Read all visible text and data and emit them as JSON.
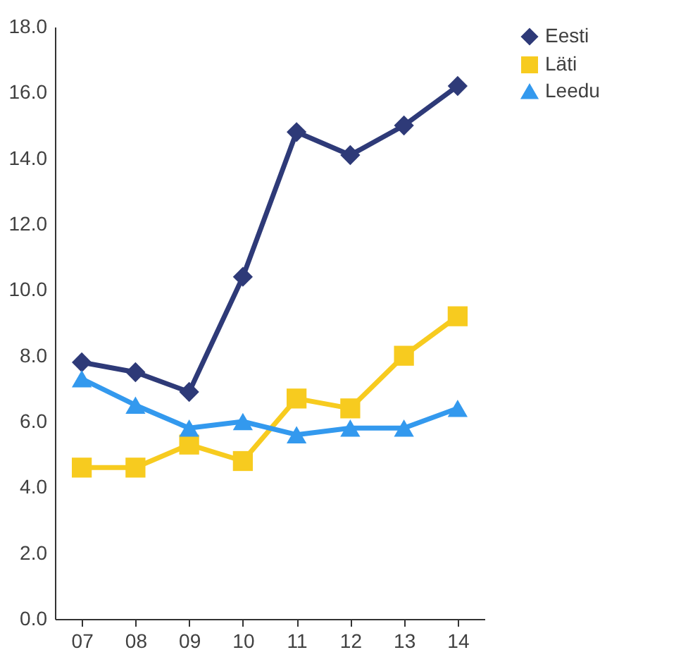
{
  "chart_data": {
    "type": "line",
    "categories": [
      "07",
      "08",
      "09",
      "10",
      "11",
      "12",
      "13",
      "14"
    ],
    "series": [
      {
        "name": "Eesti",
        "color": "#2e3a78",
        "marker": "diamond",
        "values": [
          7.8,
          7.5,
          6.9,
          10.4,
          14.8,
          14.1,
          15.0,
          16.2
        ]
      },
      {
        "name": "Läti",
        "color": "#f7cb1f",
        "marker": "square",
        "values": [
          4.6,
          4.6,
          5.3,
          4.8,
          6.7,
          6.4,
          8.0,
          9.2
        ]
      },
      {
        "name": "Leedu",
        "color": "#3399ee",
        "marker": "triangle",
        "values": [
          7.3,
          6.5,
          5.8,
          6.0,
          5.6,
          5.8,
          5.8,
          6.4
        ]
      }
    ],
    "ylim": [
      0,
      18
    ],
    "yticks": [
      {
        "value": 0,
        "label": "0.0"
      },
      {
        "value": 2,
        "label": "2.0"
      },
      {
        "value": 4,
        "label": "4.0"
      },
      {
        "value": 6,
        "label": "6.0"
      },
      {
        "value": 8,
        "label": "8.0"
      },
      {
        "value": 10,
        "label": "10.0"
      },
      {
        "value": 12,
        "label": "12.0"
      },
      {
        "value": 14,
        "label": "14.0"
      },
      {
        "value": 16,
        "label": "16.0"
      },
      {
        "value": 18,
        "label": "18.0"
      }
    ],
    "grid": false,
    "legend": "right",
    "line_style": "solid"
  }
}
